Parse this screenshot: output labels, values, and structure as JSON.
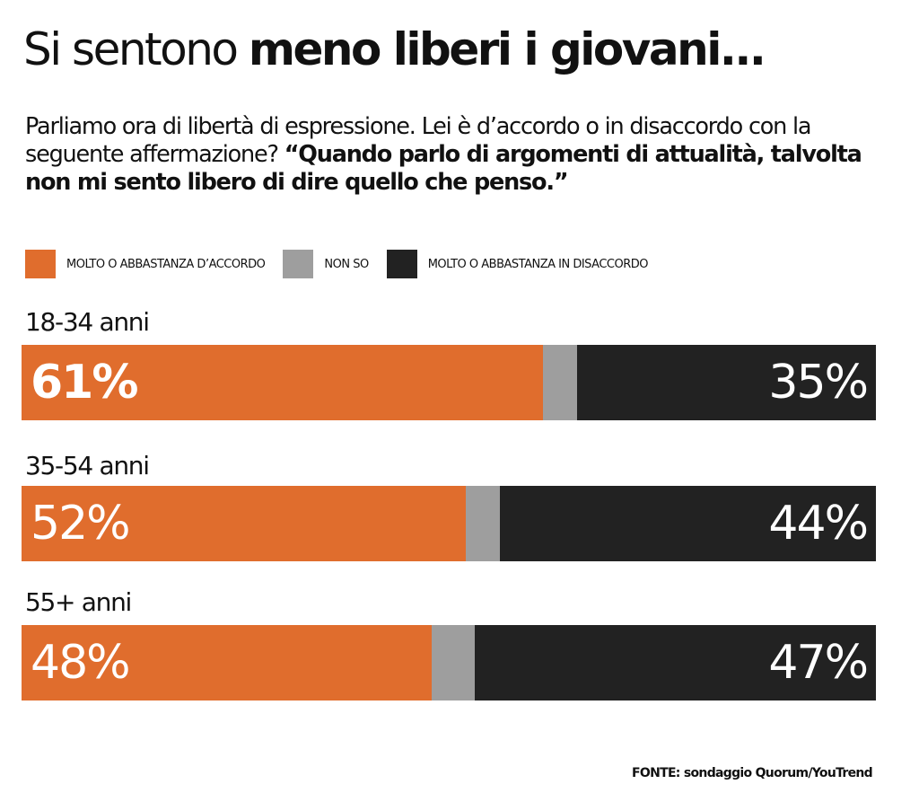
{
  "chart_data": {
    "type": "bar",
    "orientation": "horizontal-stacked",
    "title_light": "Si sentono ",
    "title_bold": "meno liberi i giovani...",
    "subtitle_plain": "Parliamo ora di libertà di espressione. Lei è d’accordo o in disaccordo con la seguente affermazione? ",
    "subtitle_quote": "“Quando parlo di argomenti di attualità, talvolta non mi sento libero di dire quello che penso.”",
    "legend": [
      {
        "label": "MOLTO O ABBASTANZA D’ACCORDO",
        "color": "#e06d2d"
      },
      {
        "label": "NON SO",
        "color": "#9e9e9e"
      },
      {
        "label": "MOLTO O ABBASTANZA IN DISACCORDO",
        "color": "#222222"
      }
    ],
    "categories": [
      "18-34 anni",
      "35-54 anni",
      "55+ anni"
    ],
    "series": [
      {
        "name": "MOLTO O ABBASTANZA D’ACCORDO",
        "values": [
          61,
          52,
          48
        ],
        "labels": [
          "61%",
          "52%",
          "48%"
        ]
      },
      {
        "name": "NON SO",
        "values": [
          4,
          4,
          5
        ]
      },
      {
        "name": "MOLTO O ABBASTANZA IN DISACCORDO",
        "values": [
          35,
          44,
          47
        ],
        "labels": [
          "35%",
          "44%",
          "47%"
        ]
      }
    ],
    "xlim": [
      0,
      100
    ],
    "source": "FONTE: sondaggio Quorum/YouTrend"
  }
}
